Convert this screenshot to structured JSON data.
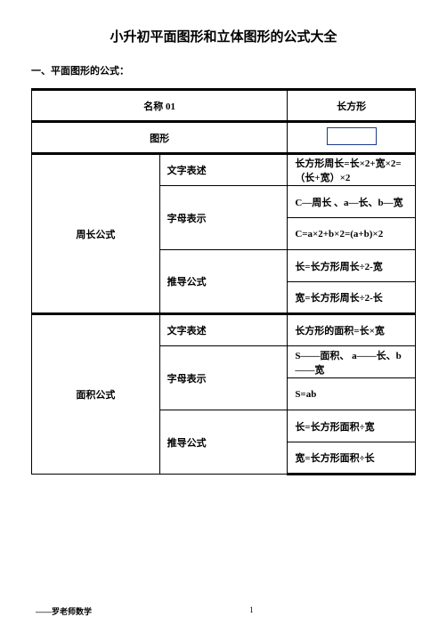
{
  "title": "小升初平面图形和立体图形的公式大全",
  "section_header": "一、平面图形的公式：",
  "name_label": "名称 01",
  "shape_title": "长方形",
  "shape_label": "图形",
  "perimeter_category": "周长公式",
  "area_category": "面积公式",
  "rows": {
    "p_text_label": "文字表述",
    "p_text_content": "长方形周长=长×2+宽×2=（长+宽）×2",
    "p_letter_label": "字母表示",
    "p_letter_content1": "C—周长 、a—长、b—宽",
    "p_letter_content2": "C=a×2+b×2=(a+b)×2",
    "p_derive_label": "推导公式",
    "p_derive_content1": "长=长方形周长÷2-宽",
    "p_derive_content2": "宽=长方形周长÷2-长",
    "a_text_label": "文字表述",
    "a_text_content": "长方形的面积=长×宽",
    "a_letter_label": "字母表示",
    "a_letter_content1": "S——面积、 a——长、b——宽",
    "a_letter_content2": "S=ab",
    "a_derive_label": "推导公式",
    "a_derive_content1": "长=长方形面积÷宽",
    "a_derive_content2": "宽=长方形面积÷长"
  },
  "footer": {
    "left": "——罗老师数学",
    "page": "1"
  },
  "colors": {
    "rect_border": "#1a3a8a",
    "text": "#000000",
    "bg": "#ffffff"
  }
}
